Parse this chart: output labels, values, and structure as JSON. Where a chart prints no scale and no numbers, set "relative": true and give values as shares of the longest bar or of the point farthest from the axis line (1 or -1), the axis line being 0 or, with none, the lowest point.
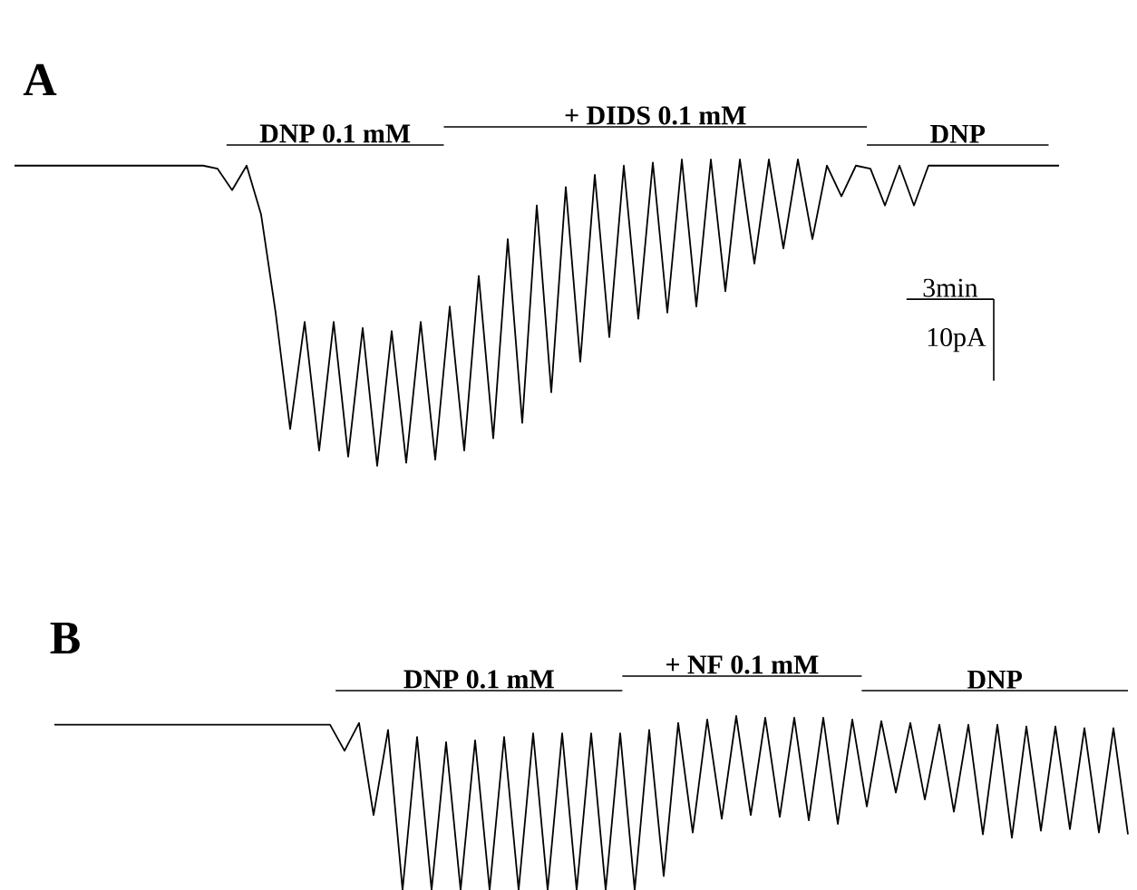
{
  "chart_data": [
    {
      "type": "line",
      "title": "A",
      "relative": true,
      "tick_labels": false,
      "categories": [
        null,
        null,
        null,
        null,
        null,
        null,
        null,
        null,
        null,
        null,
        null,
        null,
        null,
        null,
        null,
        null,
        null,
        null,
        null,
        null,
        null,
        null,
        null,
        null,
        null,
        null,
        null,
        null,
        null,
        null,
        null,
        null,
        null,
        null,
        null,
        null,
        null,
        null,
        null,
        null,
        null,
        null,
        null,
        null,
        null,
        null,
        null,
        null,
        null,
        null,
        null,
        null,
        null,
        null,
        null,
        null,
        null,
        null,
        null,
        null,
        null,
        null,
        null,
        null,
        null,
        null,
        null,
        null,
        null,
        null,
        null,
        null,
        null
      ],
      "series": [
        {
          "color": "#000000",
          "values": [
            0.98,
            0.98,
            0.98,
            0.98,
            0.98,
            0.98,
            0.98,
            0.98,
            0.98,
            0.98,
            0.98,
            0.98,
            0.98,
            0.98,
            0.97,
            0.9,
            0.98,
            0.82,
            0.5,
            0.12,
            0.47,
            0.05,
            0.47,
            0.03,
            0.45,
            0,
            0.44,
            0.01,
            0.47,
            0.02,
            0.52,
            0.05,
            0.62,
            0.09,
            0.74,
            0.14,
            0.85,
            0.24,
            0.91,
            0.34,
            0.95,
            0.42,
            0.98,
            0.48,
            0.99,
            0.5,
            1,
            0.52,
            1,
            0.57,
            1,
            0.66,
            1,
            0.71,
            1,
            0.74,
            0.98,
            0.88,
            0.98,
            0.97,
            0.85,
            0.98,
            0.85,
            0.98,
            0.98,
            0.98,
            0.98,
            0.98,
            0.98,
            0.98,
            0.98,
            0.98,
            0.98
          ]
        }
      ],
      "annotations": [
        "DNP 0.1 mM",
        "+ DIDS 0.1 mM",
        "DNP",
        "3min",
        "10pA"
      ]
    },
    {
      "type": "line",
      "title": "B",
      "relative": true,
      "tick_labels": false,
      "categories": [
        null,
        null,
        null,
        null,
        null,
        null,
        null,
        null,
        null,
        null,
        null,
        null,
        null,
        null,
        null,
        null,
        null,
        null,
        null,
        null,
        null,
        null,
        null,
        null,
        null,
        null,
        null,
        null,
        null,
        null,
        null,
        null,
        null,
        null,
        null,
        null,
        null,
        null,
        null,
        null,
        null,
        null,
        null,
        null,
        null,
        null,
        null,
        null,
        null,
        null,
        null,
        null,
        null,
        null,
        null,
        null,
        null,
        null,
        null,
        null,
        null,
        null,
        null,
        null,
        null,
        null,
        null,
        null,
        null,
        null,
        null,
        null,
        null,
        null,
        null
      ],
      "series": [
        {
          "color": "#000000",
          "values": [
            0.95,
            0.95,
            0.95,
            0.95,
            0.95,
            0.95,
            0.95,
            0.95,
            0.95,
            0.95,
            0.95,
            0.95,
            0.95,
            0.95,
            0.95,
            0.95,
            0.95,
            0.95,
            0.95,
            0.95,
            0.8,
            0.96,
            0.43,
            0.92,
            0,
            0.88,
            0,
            0.85,
            0,
            0.86,
            0,
            0.88,
            0,
            0.9,
            0,
            0.9,
            0,
            0.9,
            0,
            0.9,
            0,
            0.92,
            0.08,
            0.96,
            0.33,
            0.98,
            0.41,
            1,
            0.43,
            0.99,
            0.42,
            0.99,
            0.4,
            0.99,
            0.38,
            0.98,
            0.48,
            0.97,
            0.56,
            0.96,
            0.52,
            0.95,
            0.45,
            0.95,
            0.32,
            0.95,
            0.3,
            0.94,
            0.34,
            0.94,
            0.35,
            0.93,
            0.33,
            0.93,
            0.32
          ]
        }
      ],
      "annotations": [
        "DNP 0.1 mM",
        "+ NF 0.1 mM",
        "DNP"
      ]
    }
  ]
}
